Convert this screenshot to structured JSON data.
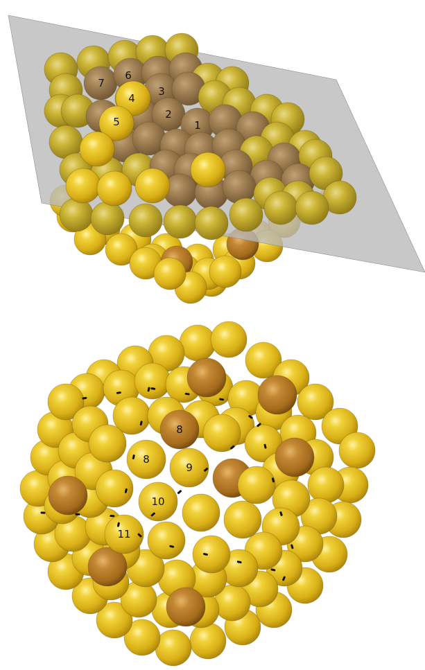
{
  "colors": {
    "gold_atom": "#e8c21f",
    "bronze_atom": "#b07a22",
    "plane": "#b9b9b9",
    "background": "#ffffff"
  },
  "panels": [
    {
      "name": "top-cluster",
      "labels": [
        "1",
        "2",
        "3",
        "4",
        "5",
        "6",
        "7"
      ]
    },
    {
      "name": "bottom-cluster",
      "labels": [
        "8",
        "8",
        "9",
        "10",
        "11"
      ]
    }
  ]
}
